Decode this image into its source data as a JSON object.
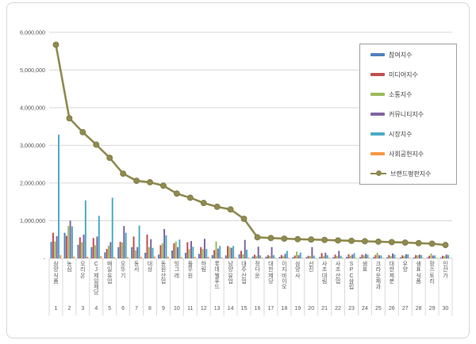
{
  "chart_data": {
    "type": "bar",
    "subtype": "grouped-bar-with-line-overlay",
    "title": "",
    "categories": [
      "삼양식품",
      "농심",
      "오리온",
      "CJ제일제당",
      "매일유업",
      "오뚜기",
      "동서",
      "대상",
      "동원산업",
      "빙그레",
      "풀무원",
      "하림",
      "롯데웰푸드",
      "남양유업",
      "대주산업",
      "정다운",
      "대한제당",
      "이지바이오",
      "삼양사",
      "선진",
      "사조대림",
      "사조산업",
      "SPC삼립",
      "샘표",
      "크라운제과",
      "대한제분",
      "우양",
      "샘표식품",
      "팜스토리",
      "인산가"
    ],
    "ranks": [
      "1",
      "2",
      "3",
      "4",
      "5",
      "6",
      "7",
      "8",
      "9",
      "10",
      "11",
      "12",
      "13",
      "14",
      "15",
      "16",
      "17",
      "18",
      "19",
      "20",
      "21",
      "22",
      "23",
      "24",
      "25",
      "26",
      "27",
      "28",
      "29",
      "30"
    ],
    "series": [
      {
        "name": "참여지수",
        "color": "#4F81BD",
        "values": [
          440000,
          680000,
          360000,
          300000,
          160000,
          300000,
          300000,
          150000,
          100000,
          210000,
          150000,
          120000,
          90000,
          80000,
          110000,
          50000,
          45000,
          40000,
          35000,
          35000,
          40000,
          35000,
          40000,
          35000,
          35000,
          30000,
          30000,
          30000,
          25000,
          25000
        ]
      },
      {
        "name": "미디어지수",
        "color": "#C0504D",
        "values": [
          680000,
          600000,
          560000,
          540000,
          250000,
          440000,
          580000,
          630000,
          350000,
          400000,
          430000,
          300000,
          220000,
          330000,
          200000,
          100000,
          85000,
          90000,
          75000,
          70000,
          140000,
          100000,
          110000,
          100000,
          90000,
          90000,
          80000,
          90000,
          70000,
          70000
        ]
      },
      {
        "name": "소통지수",
        "color": "#9BBB59",
        "values": [
          450000,
          860000,
          430000,
          350000,
          340000,
          420000,
          210000,
          300000,
          400000,
          450000,
          250000,
          250000,
          450000,
          300000,
          110000,
          60000,
          65000,
          60000,
          180000,
          60000,
          60000,
          60000,
          70000,
          80000,
          150000,
          60000,
          70000,
          80000,
          130000,
          60000
        ]
      },
      {
        "name": "커뮤니티지수",
        "color": "#8064A2",
        "values": [
          590000,
          1000000,
          630000,
          580000,
          430000,
          860000,
          300000,
          510000,
          780000,
          300000,
          460000,
          520000,
          260000,
          280000,
          490000,
          310000,
          300000,
          120000,
          85000,
          300000,
          150000,
          200000,
          100000,
          120000,
          80000,
          130000,
          110000,
          100000,
          75000,
          100000
        ]
      },
      {
        "name": "시장지수",
        "color": "#4BACC6",
        "values": [
          3280000,
          850000,
          1540000,
          1130000,
          1610000,
          680000,
          870000,
          280000,
          610000,
          500000,
          310000,
          250000,
          330000,
          330000,
          230000,
          80000,
          85000,
          200000,
          155000,
          75000,
          85000,
          70000,
          140000,
          100000,
          80000,
          100000,
          110000,
          90000,
          80000,
          90000
        ]
      },
      {
        "name": "사회공헌지수",
        "color": "#F79646",
        "values": [
          90000,
          50000,
          45000,
          60000,
          35000,
          35000,
          40000,
          50000,
          45000,
          35000,
          40000,
          40000,
          30000,
          30000,
          25000,
          20000,
          18000,
          18000,
          15000,
          15000,
          18000,
          15000,
          15000,
          15000,
          15000,
          15000,
          15000,
          15000,
          15000,
          15000
        ]
      }
    ],
    "line_series": {
      "name": "브랜드평판지수",
      "color": "#8E8A4F",
      "values": [
        5670000,
        3720000,
        3350000,
        3020000,
        2670000,
        2250000,
        2060000,
        2020000,
        1930000,
        1720000,
        1610000,
        1470000,
        1370000,
        1300000,
        1050000,
        560000,
        540000,
        525000,
        510000,
        500000,
        490000,
        478000,
        466000,
        455000,
        444000,
        432000,
        420000,
        405000,
        390000,
        355000
      ]
    },
    "y_axis": {
      "min": 0,
      "max": 6000000,
      "step": 1000000,
      "ticks": [
        {
          "label": "6,000,000",
          "value": 6000000
        },
        {
          "label": "5,000,000",
          "value": 5000000
        },
        {
          "label": "4,000,000",
          "value": 4000000
        },
        {
          "label": "3,000,000",
          "value": 3000000
        },
        {
          "label": "2,000,000",
          "value": 2000000
        },
        {
          "label": "1,000,000",
          "value": 1000000
        },
        {
          "label": "-",
          "value": 0
        }
      ],
      "grid": true
    },
    "legend": {
      "position": "top-right",
      "items": [
        {
          "label": "참여지수",
          "color": "#4F81BD",
          "marker": "bar"
        },
        {
          "label": "미디어지수",
          "color": "#C0504D",
          "marker": "bar"
        },
        {
          "label": "소통지수",
          "color": "#9BBB59",
          "marker": "bar"
        },
        {
          "label": "커뮤니티지수",
          "color": "#8064A2",
          "marker": "bar"
        },
        {
          "label": "시장지수",
          "color": "#4BACC6",
          "marker": "bar"
        },
        {
          "label": "사회공헌지수",
          "color": "#F79646",
          "marker": "bar"
        },
        {
          "label": "브랜드평판지수",
          "color": "#8E8A4F",
          "marker": "line"
        }
      ]
    }
  },
  "colors": {
    "gridline": "#d9d9d9",
    "axis_text": "#595959",
    "frame_border": "#d6d6d6",
    "legend_border": "#9f9f9f",
    "background": "#ffffff"
  }
}
